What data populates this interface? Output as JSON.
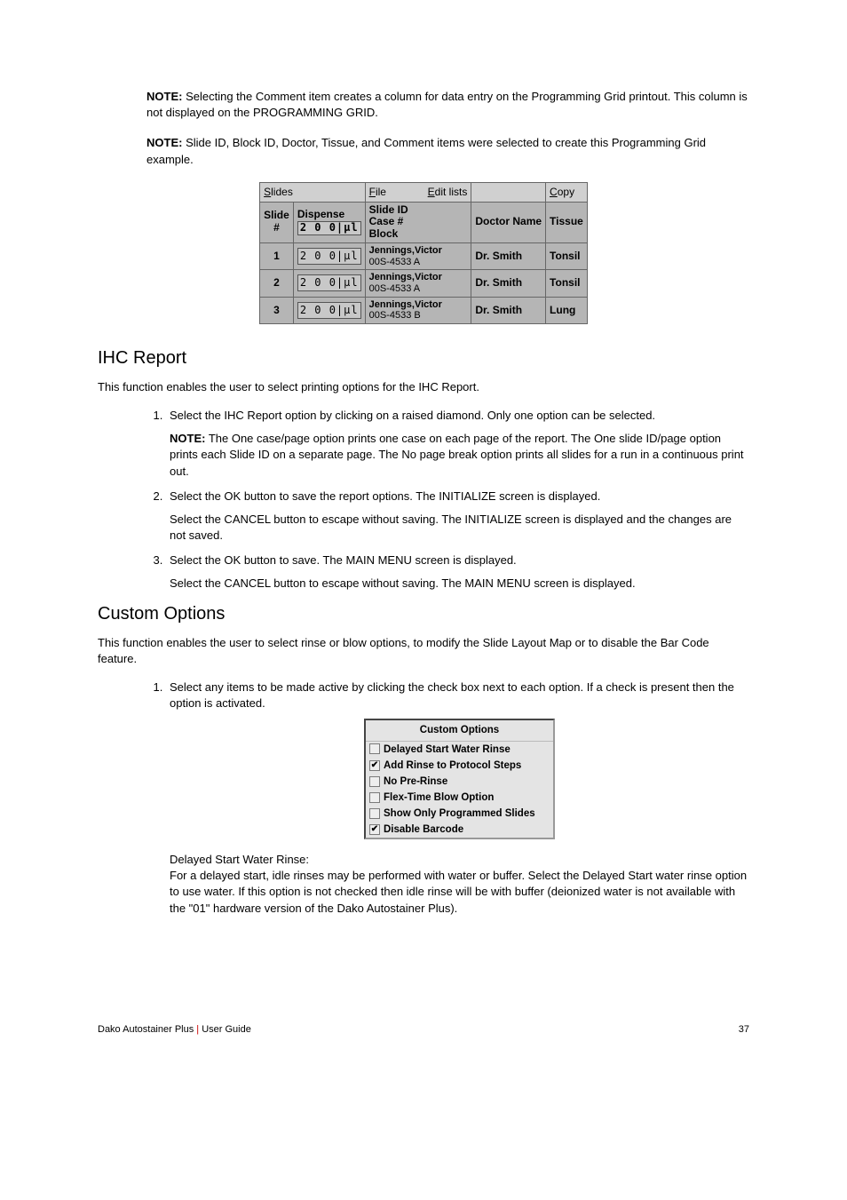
{
  "notes": {
    "note1_label": "NOTE:",
    "note1_text": "  Selecting the Comment item creates a column for data entry on the Programming Grid printout.  This column is not displayed on the PROGRAMMING GRID.",
    "note2_label": "NOTE:",
    "note2_text": "  Slide ID, Block ID, Doctor, Tissue, and Comment items were selected to create this Programming Grid example."
  },
  "grid": {
    "menu": {
      "slides": "Slides",
      "file": "File",
      "editlists": "Edit lists",
      "copy": "Copy"
    },
    "header": {
      "slideno": "Slide #",
      "dispense": "Dispense",
      "dispense_val": "2 0 0|µl",
      "slideid": "Slide ID",
      "caseno": "Case #",
      "block": "Block",
      "doctor": "Doctor Name",
      "tissue": "Tissue"
    },
    "rows": [
      {
        "n": "1",
        "disp": "2 0 0|µl",
        "name": "Jennings,Victor",
        "code": "00S-4533 A",
        "dr": "Dr. Smith",
        "tis": "Tonsil"
      },
      {
        "n": "2",
        "disp": "2 0 0|µl",
        "name": "Jennings,Victor",
        "code": "00S-4533 A",
        "dr": "Dr. Smith",
        "tis": "Tonsil"
      },
      {
        "n": "3",
        "disp": "2 0 0|µl",
        "name": "Jennings,Victor",
        "code": "00S-4533 B",
        "dr": "Dr. Smith",
        "tis": "Lung"
      }
    ]
  },
  "ihc": {
    "heading": "IHC Report",
    "intro": "This function enables the user to select printing options for the IHC Report.",
    "step1": "Select the IHC Report option by clicking on a raised diamond. Only one option can be selected.",
    "step1_note_label": "NOTE:",
    "step1_note": "  The One case/page option prints one case on each page of the report. The One slide ID/page option prints each Slide ID on a separate page. The No page break option prints all slides for a run in a continuous print out.",
    "step2a": "Select the OK button to save the report options. The INITIALIZE screen is displayed.",
    "step2b": "Select the CANCEL button to escape without saving. The INITIALIZE screen is displayed and the changes are not saved.",
    "step3a": "Select the OK button to save. The MAIN MENU screen is displayed.",
    "step3b": "Select the CANCEL button to escape without saving. The MAIN MENU screen is displayed."
  },
  "custom": {
    "heading": "Custom Options",
    "intro": "This function enables the user to select rinse or blow options, to modify the Slide Layout Map or to disable the Bar Code feature.",
    "step1": "Select any items to be made active by clicking the check box next to each option. If a check is present then the option is activated.",
    "box": {
      "title": "Custom Options",
      "opts": [
        {
          "label": "Delayed Start Water Rinse",
          "checked": false
        },
        {
          "label": "Add Rinse to Protocol Steps",
          "checked": true
        },
        {
          "label": "No Pre-Rinse",
          "checked": false
        },
        {
          "label": "Flex-Time Blow Option",
          "checked": false
        },
        {
          "label": "Show Only Programmed Slides",
          "checked": false
        },
        {
          "label": "Disable Barcode",
          "checked": true
        }
      ]
    },
    "delayed_title": "Delayed Start Water Rinse:",
    "delayed_body": "For a delayed start, idle rinses may be performed with water or buffer. Select the Delayed Start water rinse option to use water.  If this option is not checked then idle rinse will be with buffer (deionized water is not available with the \"01\" hardware version of the Dako Autostainer Plus)."
  },
  "footer": {
    "left_a": "Dako Autostainer Plus ",
    "left_b": "|",
    "left_c": " User Guide",
    "page": "37"
  }
}
